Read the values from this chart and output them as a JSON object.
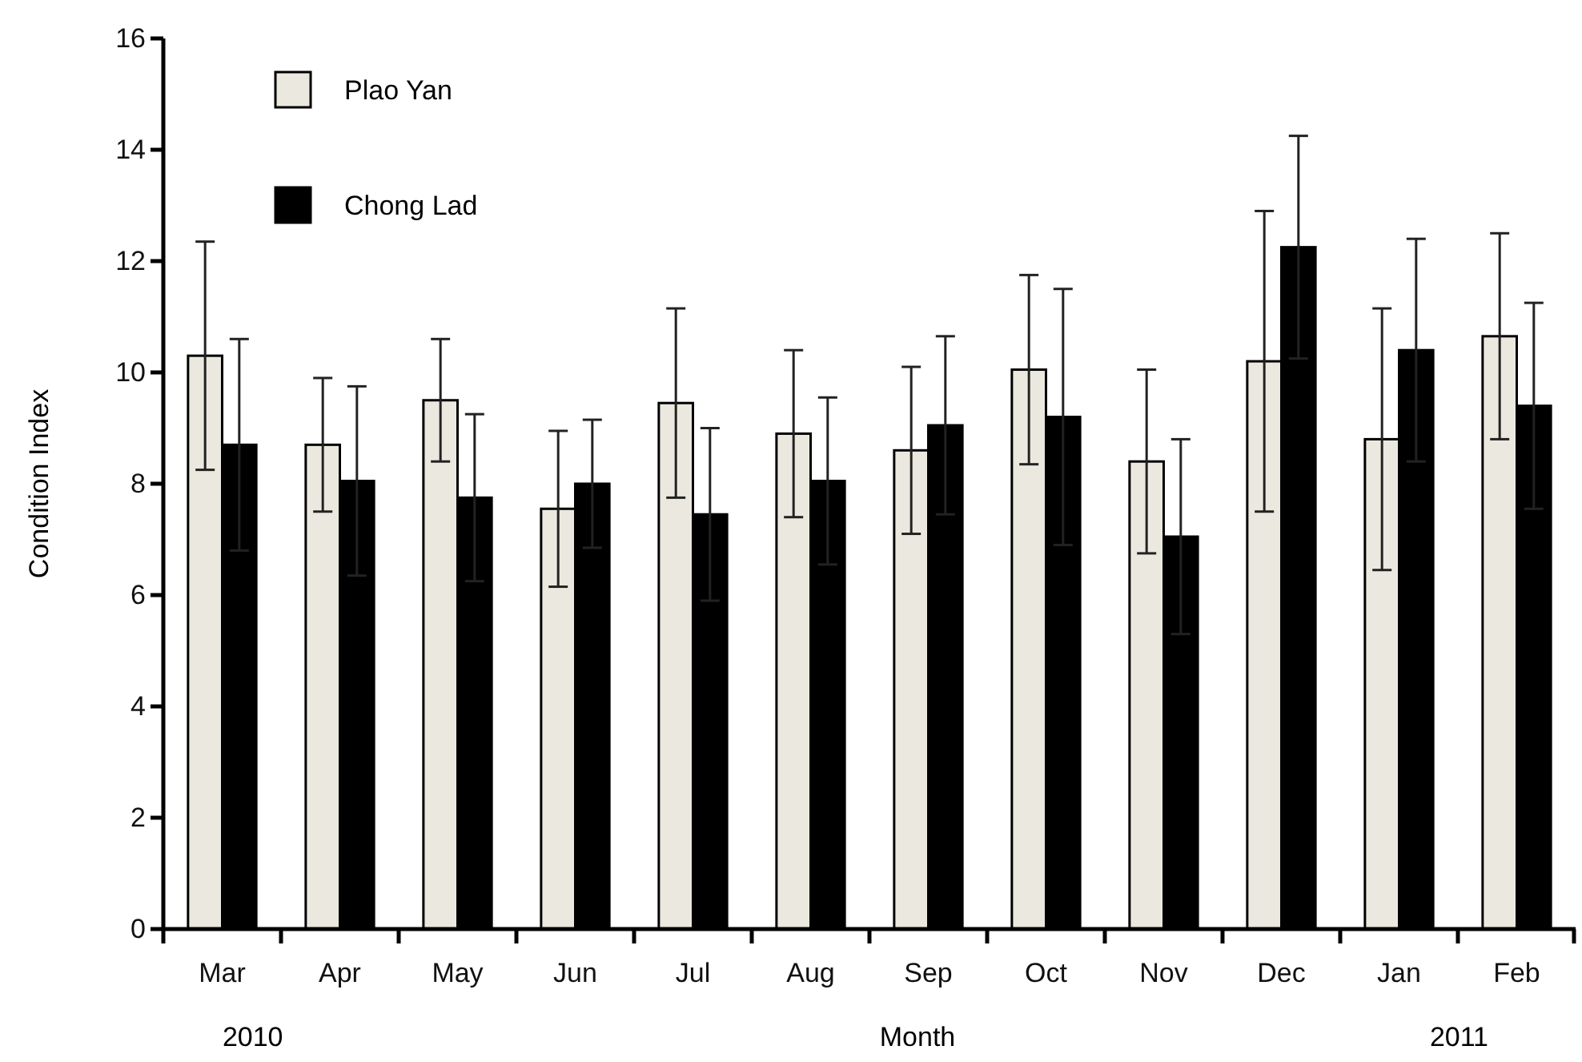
{
  "chart_data": {
    "type": "bar",
    "xlabel": "Month",
    "ylabel": "Condition Index",
    "categories": [
      "Mar",
      "Apr",
      "May",
      "Jun",
      "Jul",
      "Aug",
      "Sep",
      "Oct",
      "Nov",
      "Dec",
      "Jan",
      "Feb"
    ],
    "series": [
      {
        "name": "Plao Yan",
        "color": "#ebe9df",
        "values": [
          10.3,
          8.7,
          9.5,
          7.55,
          9.45,
          8.9,
          8.6,
          10.05,
          8.4,
          10.2,
          8.8,
          10.65
        ],
        "errors": [
          2.05,
          1.2,
          1.1,
          1.4,
          1.7,
          1.5,
          1.5,
          1.7,
          1.65,
          2.7,
          2.35,
          1.85
        ]
      },
      {
        "name": "Chong Lad",
        "color": "#000000",
        "values": [
          8.7,
          8.05,
          7.75,
          8.0,
          7.45,
          8.05,
          9.05,
          9.2,
          7.05,
          12.25,
          10.4,
          9.4
        ],
        "errors": [
          1.9,
          1.7,
          1.5,
          1.15,
          1.55,
          1.5,
          1.6,
          2.3,
          1.75,
          2.0,
          2.0,
          1.85
        ]
      }
    ],
    "ylim": [
      0,
      16
    ],
    "yticks": [
      0,
      2,
      4,
      6,
      8,
      10,
      12,
      14,
      16
    ],
    "legend": "top left",
    "grid": false,
    "annotations": [
      "2010",
      "2011"
    ]
  }
}
